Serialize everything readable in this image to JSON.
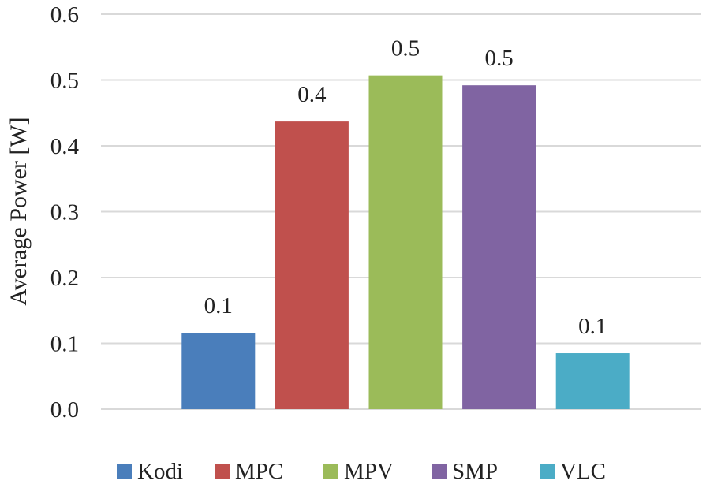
{
  "chart_data": {
    "type": "bar",
    "title": "",
    "xlabel": "",
    "ylabel": "Average Power [W]",
    "ylim": [
      0,
      0.6
    ],
    "yticks": [
      "0.0",
      "0.1",
      "0.2",
      "0.3",
      "0.4",
      "0.5",
      "0.6"
    ],
    "grid": true,
    "legend_position": "bottom",
    "series": [
      {
        "name": "Kodi",
        "value": 0.116,
        "label": "0.1",
        "color": "#4a7ebb"
      },
      {
        "name": "MPC",
        "value": 0.437,
        "label": "0.4",
        "color": "#c0504d"
      },
      {
        "name": "MPV",
        "value": 0.507,
        "label": "0.5",
        "color": "#9bbb59"
      },
      {
        "name": "SMP",
        "value": 0.492,
        "label": "0.5",
        "color": "#8064a2"
      },
      {
        "name": "VLC",
        "value": 0.085,
        "label": "0.1",
        "color": "#4bacc6"
      }
    ]
  }
}
